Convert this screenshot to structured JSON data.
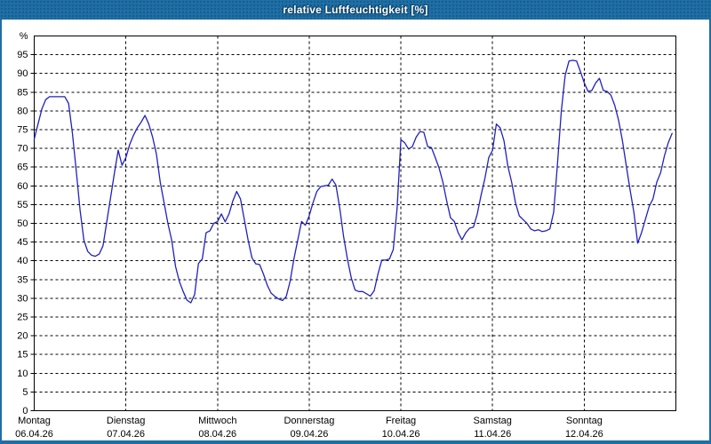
{
  "window": {
    "title": "relative Luftfeuchtigkeit [%]",
    "colors": {
      "titlebar": "#1e6fa5",
      "title_text": "#ffffff",
      "border": "#1e6fa5",
      "content_bg": "#ffffff"
    }
  },
  "chart_data": {
    "type": "line",
    "title": "relative Luftfeuchtigkeit [%]",
    "ylabel": "%",
    "unit": "%",
    "ylim": [
      0,
      100
    ],
    "yticks": [
      0,
      5,
      10,
      15,
      20,
      25,
      30,
      35,
      40,
      45,
      50,
      55,
      60,
      65,
      70,
      75,
      80,
      85,
      90,
      95
    ],
    "grid": "dashed horizontal every 5%, dashed vertical at each day boundary",
    "legend": "none",
    "line_color": "#2121bd",
    "sampling": "hourly",
    "x_days": [
      {
        "name": "Montag",
        "date": "06.04.26"
      },
      {
        "name": "Dienstag",
        "date": "07.04.26"
      },
      {
        "name": "Mittwoch",
        "date": "08.04.26"
      },
      {
        "name": "Donnerstag",
        "date": "09.04.26"
      },
      {
        "name": "Freitag",
        "date": "10.04.26"
      },
      {
        "name": "Samstag",
        "date": "11.04.26"
      },
      {
        "name": "Sonntag",
        "date": "12.04.26"
      }
    ],
    "series": [
      {
        "name": "relative Luftfeuchtigkeit",
        "day_values": [
          [
            72.5,
            76.5,
            80.5,
            83.0,
            83.8,
            83.8,
            83.8,
            83.8,
            83.8,
            82.0,
            74.0,
            64.0,
            53.5,
            45.5,
            42.5,
            41.5,
            41.2,
            41.8,
            44.0,
            50.5,
            57.0,
            63.5,
            69.5,
            65.5
          ],
          [
            67.5,
            71.0,
            73.5,
            75.5,
            77.0,
            78.8,
            76.5,
            73.0,
            68.5,
            61.0,
            55.5,
            50.0,
            45.5,
            38.5,
            34.5,
            31.8,
            29.5,
            28.8,
            31.0,
            39.3,
            40.5,
            47.5,
            48.0,
            50.0
          ],
          [
            50.5,
            52.5,
            50.4,
            52.5,
            56.0,
            58.5,
            56.5,
            51.0,
            45.5,
            40.8,
            39.2,
            39.0,
            36.5,
            33.5,
            31.4,
            30.5,
            29.8,
            29.4,
            30.5,
            34.5,
            40.5,
            45.5,
            50.5,
            49.5
          ],
          [
            52.0,
            55.5,
            58.5,
            59.8,
            60.0,
            60.2,
            61.8,
            60.2,
            54.0,
            46.5,
            40.5,
            35.5,
            32.2,
            31.8,
            31.8,
            31.2,
            30.6,
            32.0,
            36.5,
            40.2,
            40.2,
            40.5,
            43.0,
            54.0
          ],
          [
            72.3,
            71.5,
            69.8,
            70.5,
            73.0,
            74.5,
            74.3,
            70.5,
            70.2,
            67.5,
            64.8,
            61.0,
            56.0,
            51.5,
            50.5,
            47.5,
            45.6,
            47.5,
            48.7,
            49.0,
            52.5,
            57.5,
            62.0,
            67.5
          ],
          [
            69.5,
            76.5,
            75.5,
            72.0,
            65.3,
            61.0,
            55.5,
            52.0,
            51.0,
            50.0,
            48.5,
            48.0,
            48.3,
            47.8,
            48.0,
            48.5,
            53.0,
            66.0,
            80.0,
            89.5,
            93.3,
            93.5,
            93.3,
            90.5
          ],
          [
            87.5,
            85.2,
            85.5,
            87.5,
            88.7,
            85.5,
            85.2,
            84.2,
            81.5,
            77.5,
            72.1,
            65.5,
            59.0,
            53.0,
            44.7,
            47.5,
            51.0,
            54.5,
            56.5,
            61.0,
            63.5,
            68.0,
            71.5,
            74.0
          ]
        ]
      }
    ]
  }
}
